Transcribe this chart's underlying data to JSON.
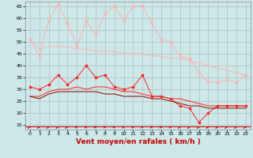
{
  "xlabel": "Vent moyen/en rafales ( km/h )",
  "xlim": [
    -0.5,
    23.5
  ],
  "ylim": [
    13,
    67
  ],
  "yticks": [
    15,
    20,
    25,
    30,
    35,
    40,
    45,
    50,
    55,
    60,
    65
  ],
  "xticks": [
    0,
    1,
    2,
    3,
    4,
    5,
    6,
    7,
    8,
    9,
    10,
    11,
    12,
    13,
    14,
    15,
    16,
    17,
    18,
    19,
    20,
    21,
    22,
    23
  ],
  "background_color": "#cce8e8",
  "grid_color": "#b0b0b0",
  "x": [
    0,
    1,
    2,
    3,
    4,
    5,
    6,
    7,
    8,
    9,
    10,
    11,
    12,
    13,
    14,
    15,
    16,
    17,
    18,
    19,
    20,
    21,
    22,
    23
  ],
  "line1_y": [
    51,
    44,
    59,
    66,
    58,
    48,
    59,
    53,
    62,
    65,
    59,
    65,
    65,
    58,
    51,
    50,
    44,
    43,
    37,
    33,
    33,
    34,
    33,
    36
  ],
  "line1_color": "#ffb0b0",
  "line2_y": [
    51,
    47,
    48,
    48,
    48,
    47,
    47,
    46,
    46,
    46,
    45,
    45,
    45,
    44,
    44,
    43,
    43,
    42,
    41,
    40,
    39,
    38,
    37,
    36
  ],
  "line2_color": "#ffb0b0",
  "line3_y": [
    31,
    30,
    32,
    36,
    32,
    35,
    40,
    35,
    36,
    31,
    30,
    31,
    36,
    27,
    27,
    26,
    23,
    22,
    16,
    20,
    23,
    23,
    23,
    23
  ],
  "line3_color": "#ff2020",
  "line4_y": [
    27,
    27,
    29,
    30,
    30,
    31,
    30,
    31,
    31,
    30,
    29,
    29,
    28,
    27,
    27,
    26,
    26,
    25,
    24,
    23,
    23,
    23,
    23,
    23
  ],
  "line4_color": "#ff2020",
  "line5_y": [
    27,
    26,
    28,
    29,
    29,
    29,
    29,
    29,
    28,
    28,
    27,
    27,
    27,
    26,
    26,
    25,
    24,
    23,
    23,
    22,
    22,
    22,
    22,
    22
  ],
  "line5_color": "#880000",
  "arrow_color": "#cc0000",
  "arrow_angles": [
    45,
    45,
    45,
    45,
    45,
    0,
    0,
    0,
    0,
    0,
    0,
    0,
    0,
    0,
    0,
    0,
    45,
    45,
    45,
    45,
    45,
    45,
    45,
    45
  ],
  "xlabel_color": "#cc0000",
  "xlabel_fontsize": 6.5,
  "tick_fontsize": 4.5,
  "line_lw": 0.7,
  "marker_size": 2.0
}
